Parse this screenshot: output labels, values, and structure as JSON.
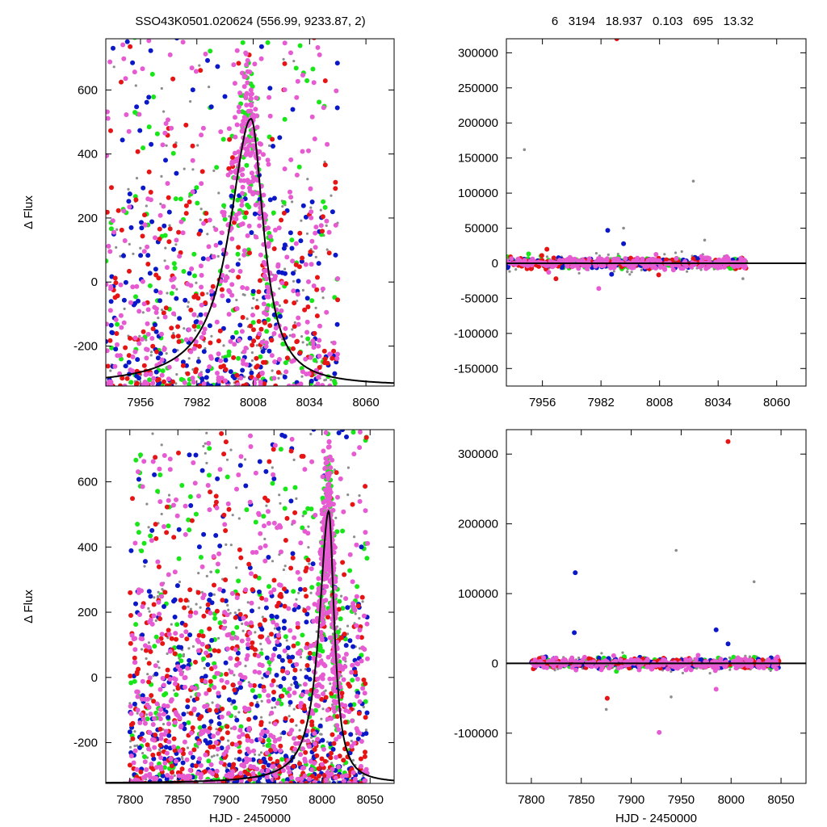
{
  "header": {
    "left": "SSO43K0501.020624 (556.99, 9233.87,    2)",
    "right": "6   3194   18.937   0.103   695   13.32"
  },
  "colors": {
    "gray": "#8c8c8c",
    "green": "#18e618",
    "blue": "#0a18c8",
    "red": "#e61414",
    "violet": "#e65ad2",
    "model": "#000000"
  },
  "model_curve": {
    "peak_x": 8007,
    "peak_y": 510,
    "baseline": -325,
    "width_left": 12,
    "width_right": 7
  },
  "chart_data": [
    {
      "id": "top-left",
      "type": "scatter",
      "title": "",
      "xlabel": "",
      "ylabel": "Δ Flux",
      "xlim": [
        7940,
        8073
      ],
      "ylim": [
        -325,
        760
      ],
      "xticks": [
        7956,
        7982,
        8008,
        8034,
        8060
      ],
      "yticks": [
        -200,
        0,
        200,
        400,
        600
      ],
      "xticklabels": [
        "7956",
        "7982",
        "8008",
        "8034",
        "8060"
      ],
      "yticklabels": [
        "-200",
        "0",
        "200",
        "400",
        "600"
      ],
      "data_x_range": [
        7940,
        8047
      ],
      "series": [
        {
          "color": "gray",
          "count": 220,
          "dense_peak": false
        },
        {
          "color": "green",
          "count": 210,
          "dense_peak": true
        },
        {
          "color": "blue",
          "count": 210,
          "dense_peak": false
        },
        {
          "color": "red",
          "count": 210,
          "dense_peak": false
        },
        {
          "color": "violet",
          "count": 520,
          "dense_peak": true
        }
      ],
      "model": true
    },
    {
      "id": "top-right",
      "type": "scatter",
      "title": "",
      "xlabel": "",
      "ylabel": "",
      "xlim": [
        7940,
        8073
      ],
      "ylim": [
        -175000,
        320000
      ],
      "xticks": [
        7956,
        7982,
        8008,
        8034,
        8060
      ],
      "yticks": [
        -150000,
        -100000,
        -50000,
        0,
        50000,
        100000,
        150000,
        200000,
        250000,
        300000
      ],
      "xticklabels": [
        "7956",
        "7982",
        "8008",
        "8034",
        "8060"
      ],
      "yticklabels": [
        "-150000",
        "-100000",
        "-50000",
        "0",
        "50000",
        "100000",
        "150000",
        "200000",
        "250000",
        "300000"
      ],
      "data_x_range": [
        7940,
        8047
      ],
      "band_spread": 4000,
      "outliers": [
        {
          "x": 7948,
          "y": 162000,
          "color": "gray"
        },
        {
          "x": 7989,
          "y": 320000,
          "color": "red"
        },
        {
          "x": 7985,
          "y": 47000,
          "color": "blue"
        },
        {
          "x": 7992,
          "y": 28000,
          "color": "blue"
        },
        {
          "x": 8023,
          "y": 117000,
          "color": "gray"
        },
        {
          "x": 7981,
          "y": -36000,
          "color": "violet"
        },
        {
          "x": 7958,
          "y": 20000,
          "color": "red"
        },
        {
          "x": 7992,
          "y": 50000,
          "color": "gray"
        },
        {
          "x": 8028,
          "y": 33000,
          "color": "gray"
        },
        {
          "x": 7962,
          "y": -22000,
          "color": "red"
        },
        {
          "x": 8045,
          "y": -22000,
          "color": "gray"
        }
      ],
      "model": true
    },
    {
      "id": "bottom-left",
      "type": "scatter",
      "title": "",
      "xlabel": "HJD - 2450000",
      "ylabel": "Δ Flux",
      "xlim": [
        7775,
        8075
      ],
      "ylim": [
        -325,
        760
      ],
      "xticks": [
        7800,
        7850,
        7900,
        7950,
        8000,
        8050
      ],
      "yticks": [
        -200,
        0,
        200,
        400,
        600
      ],
      "xticklabels": [
        "7800",
        "7850",
        "7900",
        "7950",
        "8000",
        "8050"
      ],
      "yticklabels": [
        "-200",
        "0",
        "200",
        "400",
        "600"
      ],
      "data_x_range": [
        7800,
        8048
      ],
      "series": [
        {
          "color": "gray",
          "count": 420,
          "dense_peak": false
        },
        {
          "color": "green",
          "count": 380,
          "dense_peak": true
        },
        {
          "color": "blue",
          "count": 380,
          "dense_peak": false
        },
        {
          "color": "red",
          "count": 420,
          "dense_peak": false
        },
        {
          "color": "violet",
          "count": 900,
          "dense_peak": true
        }
      ],
      "model": true
    },
    {
      "id": "bottom-right",
      "type": "scatter",
      "title": "",
      "xlabel": "HJD - 2450000",
      "ylabel": "",
      "xlim": [
        7775,
        8075
      ],
      "ylim": [
        -172000,
        335000
      ],
      "xticks": [
        7800,
        7850,
        7900,
        7950,
        8000,
        8050
      ],
      "yticks": [
        -100000,
        0,
        100000,
        200000,
        300000
      ],
      "xticklabels": [
        "7800",
        "7850",
        "7900",
        "7950",
        "8000",
        "8050"
      ],
      "yticklabels": [
        "-100000",
        "0",
        "100000",
        "200000",
        "300000"
      ],
      "data_x_range": [
        7800,
        8048
      ],
      "band_spread": 3500,
      "outliers": [
        {
          "x": 7997,
          "y": 318000,
          "color": "red"
        },
        {
          "x": 7945,
          "y": 162000,
          "color": "gray"
        },
        {
          "x": 7844,
          "y": 130000,
          "color": "blue"
        },
        {
          "x": 8023,
          "y": 117000,
          "color": "gray"
        },
        {
          "x": 7843,
          "y": 44000,
          "color": "blue"
        },
        {
          "x": 7985,
          "y": 48000,
          "color": "blue"
        },
        {
          "x": 7997,
          "y": 28000,
          "color": "blue"
        },
        {
          "x": 7876,
          "y": -50000,
          "color": "red"
        },
        {
          "x": 7928,
          "y": -99000,
          "color": "violet"
        },
        {
          "x": 7985,
          "y": -37000,
          "color": "violet"
        },
        {
          "x": 7875,
          "y": -66000,
          "color": "gray"
        },
        {
          "x": 7940,
          "y": -48000,
          "color": "gray"
        }
      ],
      "model": true
    }
  ]
}
